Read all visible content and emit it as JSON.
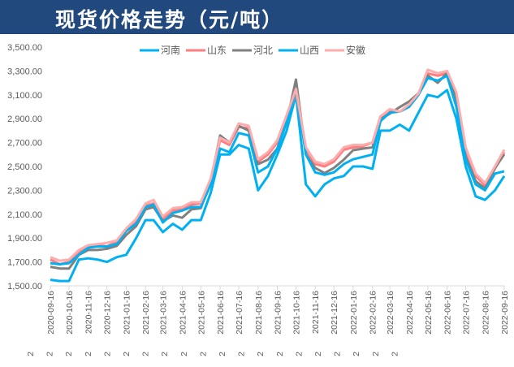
{
  "chart_data": {
    "type": "line",
    "title": "现货价格走势（元/吨）",
    "legend_position": "top",
    "grid": false,
    "ylim": [
      1500,
      3500
    ],
    "y_ticks": [
      "1,500.00",
      "1,700.00",
      "1,900.00",
      "2,100.00",
      "2,300.00",
      "2,500.00",
      "2,700.00",
      "2,900.00",
      "3,100.00",
      "3,300.00",
      "3,500.00"
    ],
    "x_tick_labels": [
      "2020-09-16",
      "2020-10-16",
      "2020-11-16",
      "2020-12-16",
      "2021-01-16",
      "2021-02-16",
      "2021-03-16",
      "2021-04-16",
      "2021-05-16",
      "2021-06-16",
      "2021-07-16",
      "2021-08-16",
      "2021-09-16",
      "2021-10-16",
      "2021-11-16",
      "2021-12-16",
      "2022-01-16",
      "2022-02-16",
      "2022-03-16",
      "2022-04-16",
      "2022-05-16",
      "2022-06-16",
      "2022-07-16",
      "2022-08-16",
      "2022-09-16"
    ],
    "secondary_tick_labels": [
      "2",
      "2",
      "2",
      "2",
      "2",
      "2",
      "2",
      "2",
      "2",
      "2",
      "2",
      "2",
      "2",
      "2",
      "2",
      "2",
      "2",
      "2",
      "2",
      "2"
    ],
    "x": [
      "2020-09-16",
      "2020-10-01",
      "2020-10-16",
      "2020-11-01",
      "2020-11-16",
      "2020-12-01",
      "2020-12-16",
      "2021-01-01",
      "2021-01-16",
      "2021-02-01",
      "2021-02-16",
      "2021-03-01",
      "2021-03-16",
      "2021-04-01",
      "2021-04-16",
      "2021-05-01",
      "2021-05-16",
      "2021-06-01",
      "2021-06-16",
      "2021-07-01",
      "2021-07-16",
      "2021-08-01",
      "2021-08-16",
      "2021-09-01",
      "2021-09-16",
      "2021-10-01",
      "2021-10-16",
      "2021-11-01",
      "2021-11-16",
      "2021-12-01",
      "2021-12-16",
      "2022-01-01",
      "2022-01-16",
      "2022-02-01",
      "2022-02-16",
      "2022-03-01",
      "2022-03-16",
      "2022-04-01",
      "2022-04-16",
      "2022-05-01",
      "2022-05-16",
      "2022-06-01",
      "2022-06-16",
      "2022-07-01",
      "2022-07-16",
      "2022-08-01",
      "2022-08-16",
      "2022-09-01",
      "2022-09-16"
    ],
    "series": [
      {
        "name": "河南",
        "color": "#00B0F0",
        "values": [
          1550,
          1540,
          1540,
          1720,
          1730,
          1720,
          1700,
          1740,
          1760,
          1900,
          2050,
          2050,
          1950,
          2020,
          1970,
          2050,
          2050,
          2280,
          2600,
          2600,
          2680,
          2650,
          2300,
          2420,
          2600,
          2800,
          3100,
          2350,
          2250,
          2350,
          2400,
          2420,
          2500,
          2500,
          2480,
          2800,
          2800,
          2850,
          2800,
          2950,
          3100,
          3080,
          3140,
          2900,
          2500,
          2250,
          2220,
          2300,
          2420
        ]
      },
      {
        "name": "山东",
        "color": "#FF7C80",
        "values": [
          1720,
          1680,
          1700,
          1780,
          1830,
          1840,
          1830,
          1870,
          1960,
          2040,
          2170,
          2190,
          2060,
          2130,
          2140,
          2180,
          2190,
          2390,
          2720,
          2680,
          2830,
          2820,
          2540,
          2600,
          2700,
          2900,
          3120,
          2640,
          2520,
          2500,
          2540,
          2640,
          2660,
          2670,
          2700,
          2920,
          2960,
          2960,
          3000,
          3100,
          3280,
          3260,
          3280,
          3100,
          2620,
          2420,
          2340,
          2480,
          2620
        ]
      },
      {
        "name": "河北",
        "color": "#808080",
        "values": [
          1659,
          1645,
          1645,
          1760,
          1800,
          1800,
          1810,
          1835,
          1926,
          2000,
          2140,
          2160,
          2040,
          2090,
          2070,
          2140,
          2150,
          2380,
          2760,
          2700,
          2840,
          2800,
          2520,
          2557,
          2650,
          2874,
          3228,
          2602,
          2488,
          2444,
          2488,
          2557,
          2636,
          2650,
          2660,
          2897,
          2942,
          2998,
          3044,
          3112,
          3262,
          3201,
          3282,
          3058,
          2581,
          2377,
          2316,
          2486,
          2602
        ]
      },
      {
        "name": "山西",
        "color": "#00B0F0",
        "values": [
          1690,
          1680,
          1690,
          1760,
          1820,
          1830,
          1830,
          1850,
          1960,
          2020,
          2160,
          2180,
          2030,
          2110,
          2130,
          2160,
          2160,
          2350,
          2650,
          2620,
          2780,
          2760,
          2450,
          2500,
          2650,
          2870,
          3150,
          2600,
          2450,
          2430,
          2450,
          2520,
          2560,
          2580,
          2600,
          2880,
          2950,
          2960,
          3000,
          3100,
          3240,
          3220,
          3260,
          3000,
          2560,
          2350,
          2300,
          2440,
          2460
        ]
      },
      {
        "name": "安徽",
        "color": "#FFACAC",
        "values": [
          1740,
          1710,
          1720,
          1800,
          1840,
          1850,
          1860,
          1880,
          1980,
          2060,
          2190,
          2220,
          2080,
          2150,
          2160,
          2200,
          2200,
          2400,
          2740,
          2700,
          2860,
          2840,
          2560,
          2620,
          2720,
          2930,
          3150,
          2660,
          2540,
          2520,
          2560,
          2660,
          2680,
          2680,
          2700,
          2920,
          2980,
          2960,
          3020,
          3110,
          3310,
          3280,
          3300,
          3120,
          2660,
          2440,
          2360,
          2500,
          2640
        ]
      }
    ]
  }
}
